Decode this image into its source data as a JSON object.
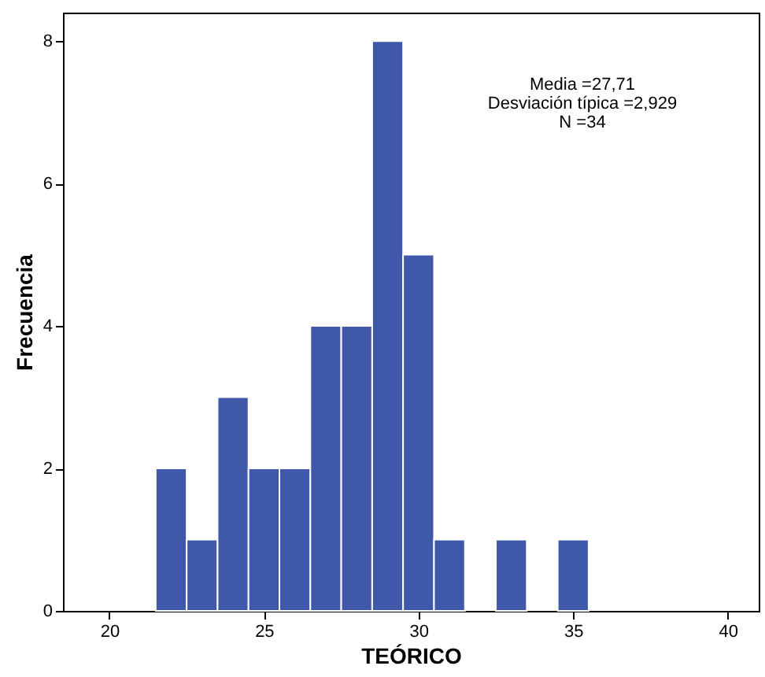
{
  "chart_data": {
    "type": "histogram",
    "xlabel": "TEÓRICO",
    "ylabel": "Frecuencia",
    "bins": [
      21.5,
      22.5,
      23.5,
      24.5,
      25.5,
      26.5,
      27.5,
      28.5,
      29.5,
      30.5,
      31.5,
      32.5,
      33.5,
      34.5,
      35.5
    ],
    "values": [
      2,
      1,
      3,
      2,
      2,
      4,
      4,
      8,
      5,
      1,
      0,
      1,
      0,
      1
    ],
    "color": "#3f58a9",
    "xlim": [
      18.5,
      41
    ],
    "xticks": [
      20,
      25,
      30,
      35,
      40
    ],
    "ylim": [
      0,
      8.4
    ],
    "yticks": [
      0,
      2,
      4,
      6,
      8
    ],
    "grid": false,
    "annotations": [
      "Media =27,71",
      "Desviación típica =2,929",
      "N =34"
    ]
  }
}
